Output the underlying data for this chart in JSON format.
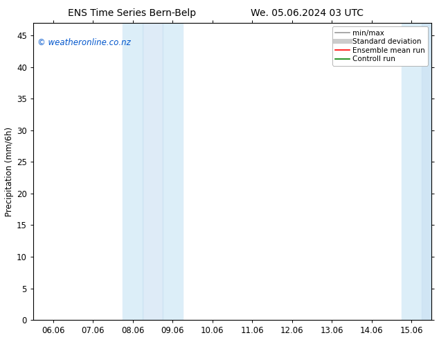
{
  "title_left": "ENS Time Series Bern-Belp",
  "title_right": "We. 05.06.2024 03 UTC",
  "ylabel": "Precipitation (mm/6h)",
  "ylim": [
    0,
    47
  ],
  "yticks": [
    0,
    5,
    10,
    15,
    20,
    25,
    30,
    35,
    40,
    45
  ],
  "xtick_labels": [
    "06.06",
    "07.06",
    "08.06",
    "09.06",
    "10.06",
    "11.06",
    "12.06",
    "13.06",
    "14.06",
    "15.06"
  ],
  "xtick_positions": [
    0,
    1,
    2,
    3,
    4,
    5,
    6,
    7,
    8,
    9
  ],
  "xlim": [
    -0.5,
    9.5
  ],
  "shade_light": [
    {
      "xmin": 1.75,
      "xmax": 2.25
    },
    {
      "xmin": 2.75,
      "xmax": 3.25
    },
    {
      "xmin": 8.75,
      "xmax": 9.5
    }
  ],
  "shade_medium": [
    {
      "xmin": 2.25,
      "xmax": 2.75
    },
    {
      "xmin": 9.25,
      "xmax": 9.5
    }
  ],
  "shade_light_color": "#dceef8",
  "shade_medium_color": "#c8dff2",
  "watermark": "© weatheronline.co.nz",
  "watermark_color": "#0055cc",
  "legend_items": [
    {
      "label": "min/max",
      "color": "#999999",
      "lw": 1.2
    },
    {
      "label": "Standard deviation",
      "color": "#cccccc",
      "lw": 5
    },
    {
      "label": "Ensemble mean run",
      "color": "#ff0000",
      "lw": 1.2
    },
    {
      "label": "Controll run",
      "color": "#008000",
      "lw": 1.2
    }
  ],
  "bg_color": "#ffffff",
  "figsize": [
    6.34,
    4.9
  ],
  "dpi": 100
}
